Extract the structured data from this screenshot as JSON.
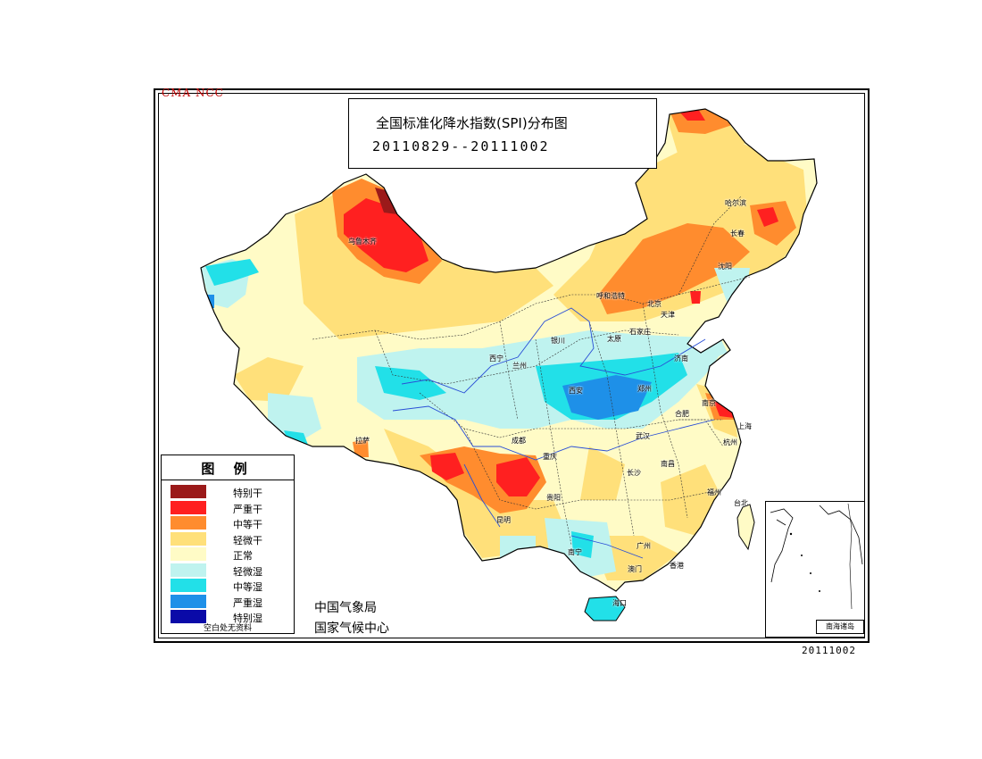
{
  "watermark": "CMA  NCC",
  "title": {
    "main": "全国标准化降水指数(SPI)分布图",
    "period": "20110829--20111002"
  },
  "legend": {
    "title": "图  例",
    "items": [
      {
        "label": "特别干",
        "color": "#9b1a1a"
      },
      {
        "label": "严重干",
        "color": "#ff2020"
      },
      {
        "label": "中等干",
        "color": "#ff8c2e"
      },
      {
        "label": "轻微干",
        "color": "#ffe07a"
      },
      {
        "label": "正常",
        "color": "#fffbc6"
      },
      {
        "label": "轻微湿",
        "color": "#bff3ef"
      },
      {
        "label": "中等湿",
        "color": "#22e0e8"
      },
      {
        "label": "严重湿",
        "color": "#1e90e8"
      },
      {
        "label": "特别湿",
        "color": "#0a0aa8"
      }
    ],
    "footnote": "空白处无资料"
  },
  "organization": {
    "line1": "中国气象局",
    "line2": "国家气候中心"
  },
  "inset_label": "南海诸岛",
  "date_stamp": "20111002",
  "cities": [
    {
      "name": "乌鲁木齐"
    },
    {
      "name": "哈尔滨"
    },
    {
      "name": "长春"
    },
    {
      "name": "沈阳"
    },
    {
      "name": "呼和浩特"
    },
    {
      "name": "北京"
    },
    {
      "name": "天津"
    },
    {
      "name": "石家庄"
    },
    {
      "name": "太原"
    },
    {
      "name": "银川"
    },
    {
      "name": "西宁"
    },
    {
      "name": "兰州"
    },
    {
      "name": "济南"
    },
    {
      "name": "西安"
    },
    {
      "name": "郑州"
    },
    {
      "name": "南京"
    },
    {
      "name": "合肥"
    },
    {
      "name": "上海"
    },
    {
      "name": "杭州"
    },
    {
      "name": "武汉"
    },
    {
      "name": "成都"
    },
    {
      "name": "重庆"
    },
    {
      "name": "拉萨"
    },
    {
      "name": "长沙"
    },
    {
      "name": "南昌"
    },
    {
      "name": "福州"
    },
    {
      "name": "贵阳"
    },
    {
      "name": "昆明"
    },
    {
      "name": "南宁"
    },
    {
      "name": "广州"
    },
    {
      "name": "香港"
    },
    {
      "name": "澳门"
    },
    {
      "name": "台北"
    },
    {
      "name": "海口"
    }
  ]
}
